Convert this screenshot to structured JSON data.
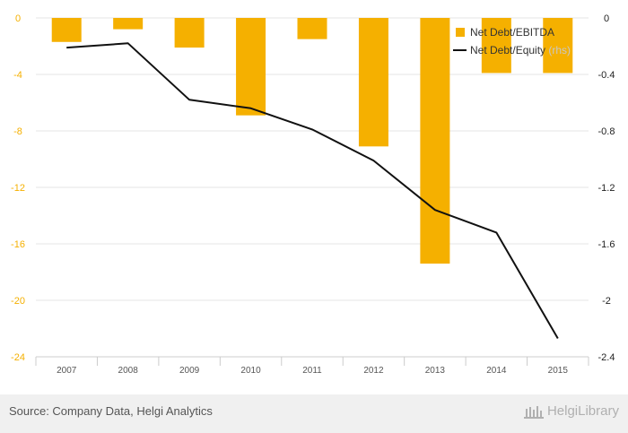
{
  "chart_data": {
    "type": "bar",
    "categories": [
      "2007",
      "2008",
      "2009",
      "2010",
      "2011",
      "2012",
      "2013",
      "2014",
      "2015"
    ],
    "series": [
      {
        "name": "Net Debt/EBITDA",
        "kind": "bar",
        "axis": "left",
        "values": [
          -1.7,
          -0.8,
          -2.1,
          -6.9,
          -1.5,
          -9.1,
          -17.4,
          -3.9,
          -3.9
        ]
      },
      {
        "name": "Net Debt/Equity",
        "name_suffix": " (rhs)",
        "kind": "line",
        "axis": "right",
        "values": [
          -0.21,
          -0.18,
          -0.58,
          -0.64,
          -0.79,
          -1.01,
          -1.36,
          -1.52,
          -2.27
        ]
      }
    ],
    "left_axis": {
      "ylim": [
        -24,
        0
      ],
      "ticks": [
        "0",
        "-4",
        "-8",
        "-12",
        "-16",
        "-20",
        "-24"
      ]
    },
    "right_axis": {
      "ylim": [
        -2.4,
        0
      ],
      "ticks": [
        "0",
        "-0.4",
        "-0.8",
        "-1.2",
        "-1.6",
        "-2",
        "-2.4"
      ]
    },
    "legend_position": "top-right",
    "grid": true,
    "colors": {
      "bar": "#f5b000",
      "line": "#111111",
      "left_tick": "#f5b000",
      "right_tick": "#222222",
      "grid": "#e6e6e6"
    }
  },
  "footer": {
    "source": "Source: Company Data, Helgi Analytics",
    "brand": "HelgiLibrary"
  }
}
